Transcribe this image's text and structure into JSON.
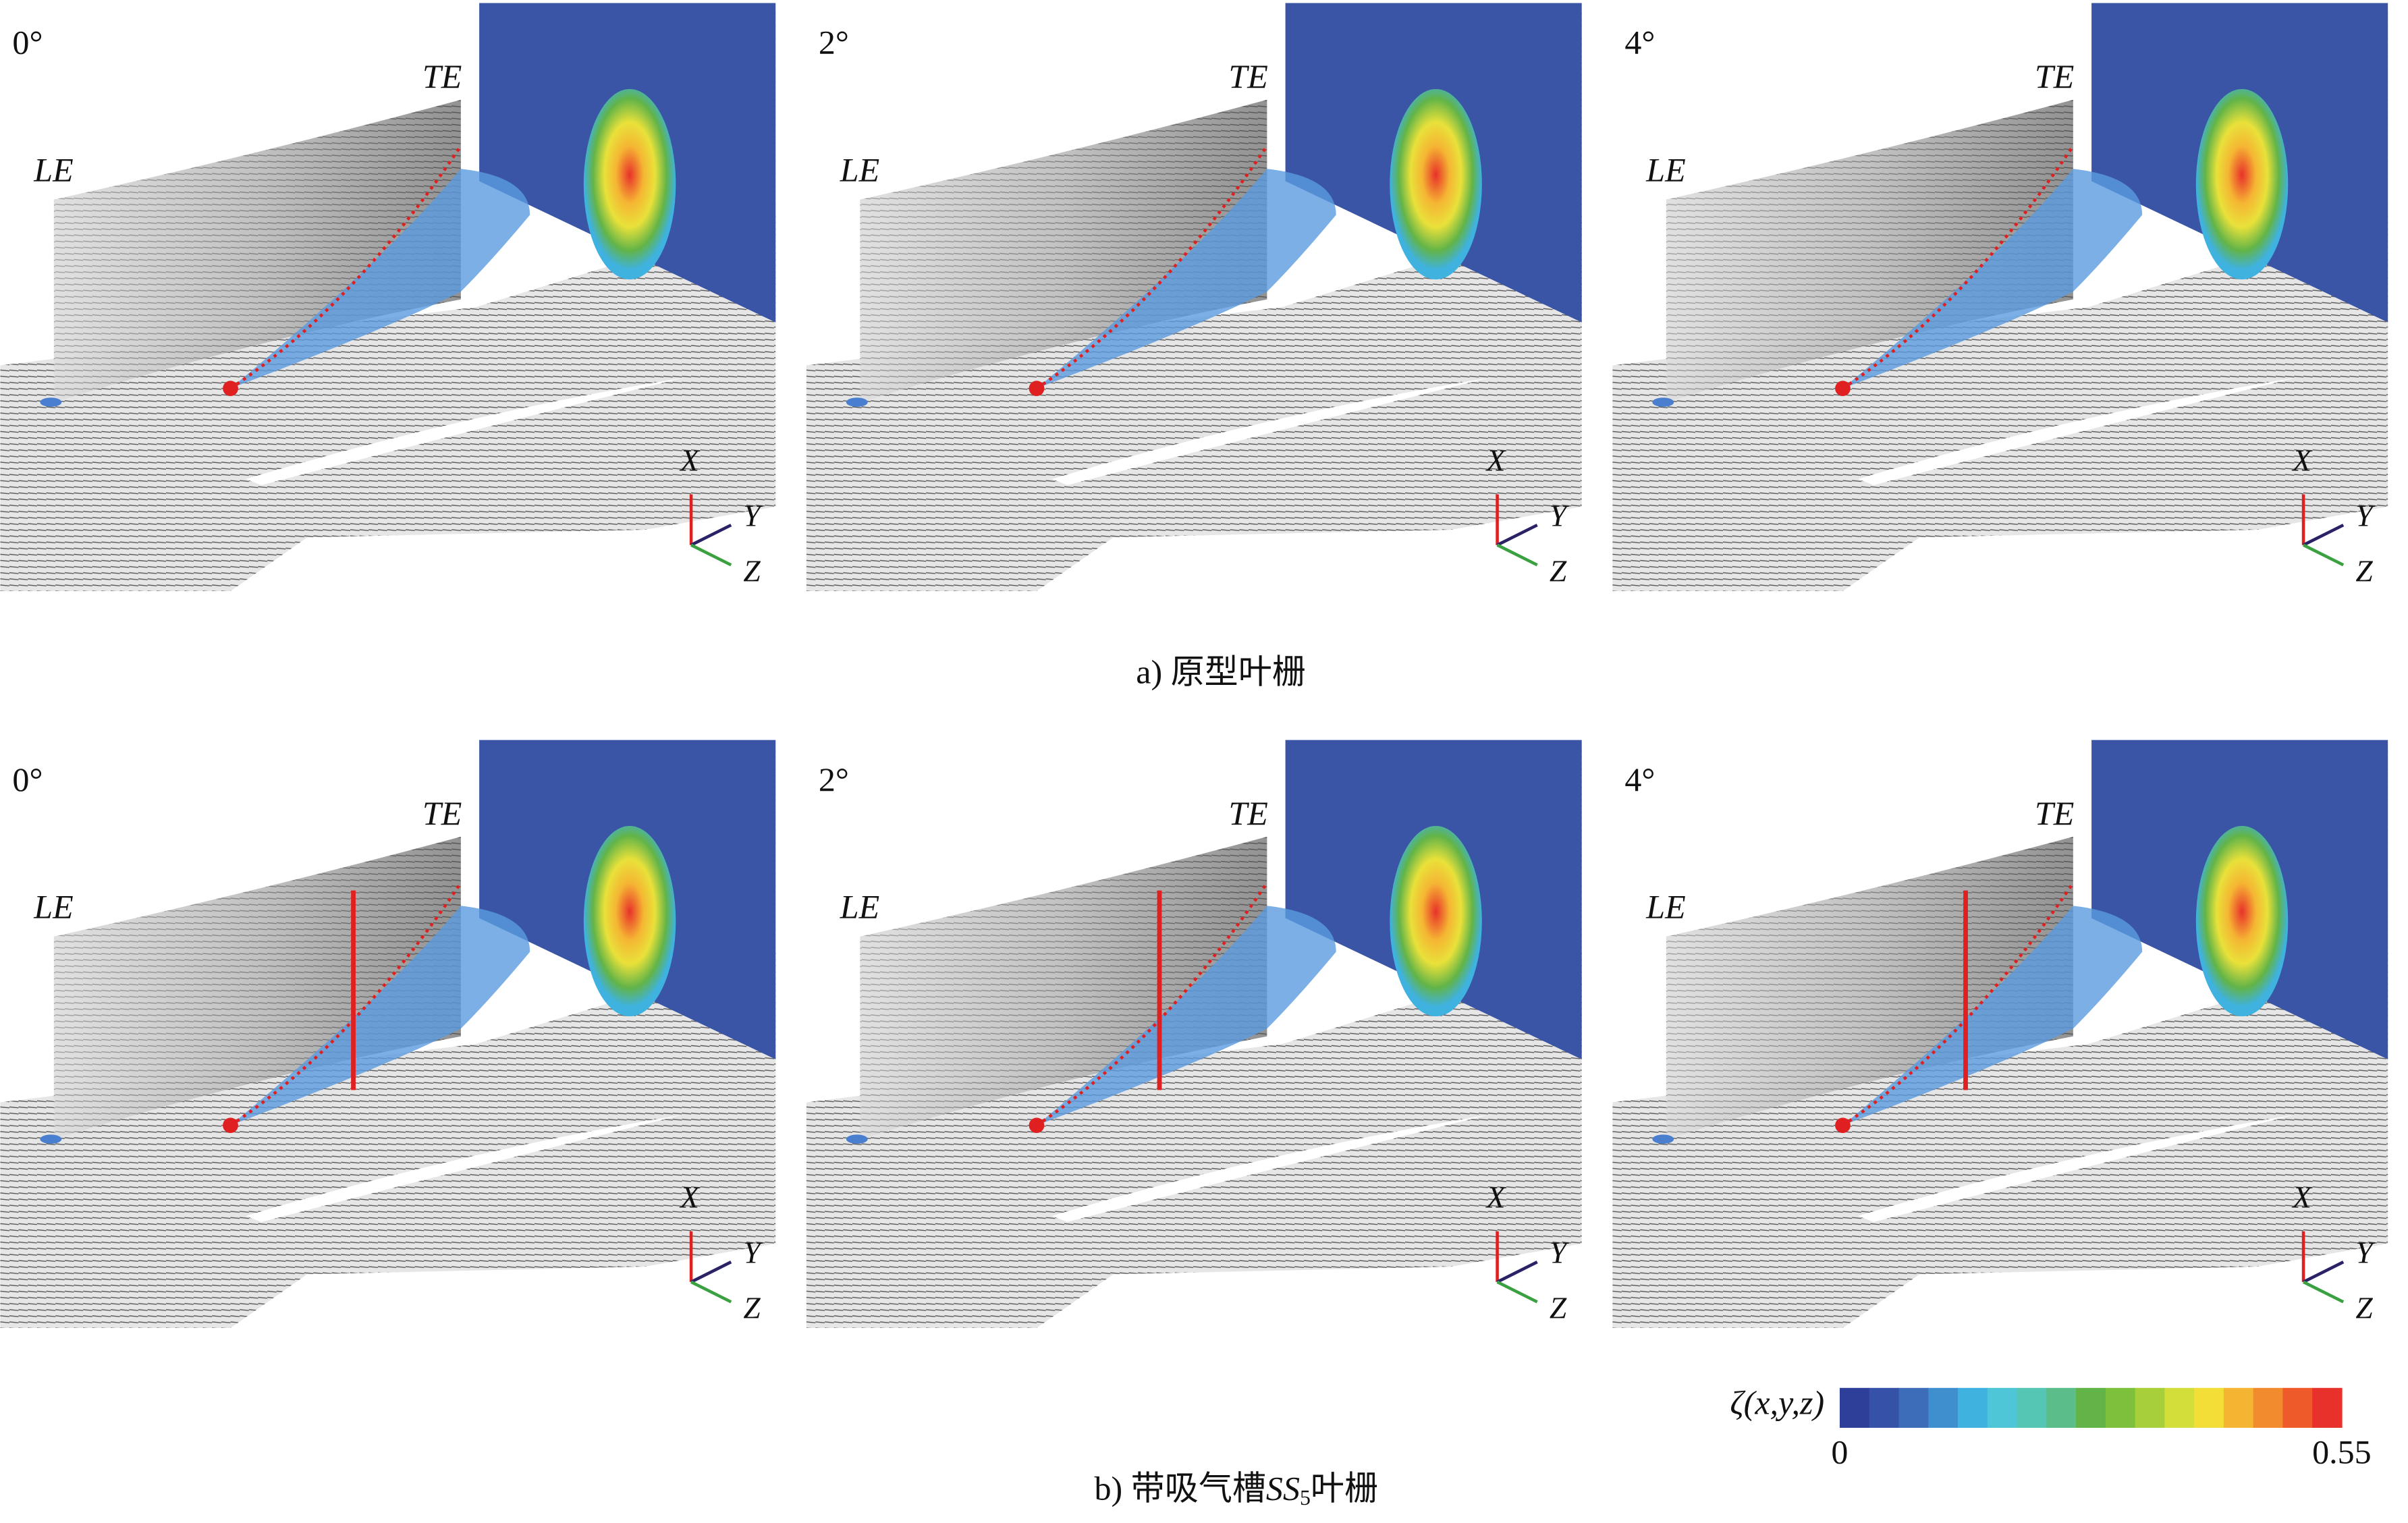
{
  "rows": [
    {
      "caption": "a) 原型叶栅",
      "panels": [
        {
          "angle": "0°",
          "le": "LE",
          "te": "TE",
          "axes": [
            "X",
            "Y",
            "Z"
          ]
        },
        {
          "angle": "2°",
          "le": "LE",
          "te": "TE",
          "axes": [
            "X",
            "Y",
            "Z"
          ]
        },
        {
          "angle": "4°",
          "le": "LE",
          "te": "TE",
          "axes": [
            "X",
            "Y",
            "Z"
          ]
        }
      ]
    },
    {
      "caption": [
        "b) 带吸气槽",
        "SS",
        "5",
        "叶栅"
      ],
      "panels": [
        {
          "angle": "0°",
          "le": "LE",
          "te": "TE",
          "axes": [
            "X",
            "Y",
            "Z"
          ]
        },
        {
          "angle": "2°",
          "le": "LE",
          "te": "TE",
          "axes": [
            "X",
            "Y",
            "Z"
          ]
        },
        {
          "angle": "4°",
          "le": "LE",
          "te": "TE",
          "axes": [
            "X",
            "Y",
            "Z"
          ]
        }
      ]
    }
  ],
  "colorbar": {
    "label": "ζ(x,y,z)",
    "lim": [
      0,
      0.55
    ],
    "ticks": [
      0,
      0.55
    ],
    "colors": [
      "#2e3f9a",
      "#3552a8",
      "#3d6cb8",
      "#3f8fcf",
      "#3fb2e0",
      "#4fc6d8",
      "#56c6b4",
      "#5bbd8a",
      "#62b448",
      "#7cc03c",
      "#a6cf3a",
      "#d4de3a",
      "#f2de36",
      "#f5b533",
      "#f28a2e",
      "#ee5a2a",
      "#e8312a"
    ]
  }
}
